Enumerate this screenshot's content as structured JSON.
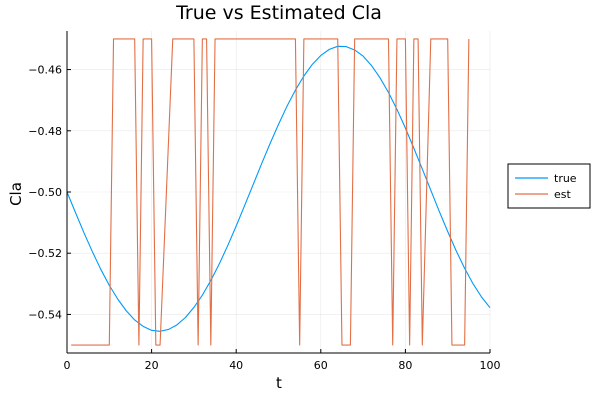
{
  "chart_data": {
    "type": "line",
    "title": "True vs Estimated Cla",
    "xlabel": "t",
    "ylabel": "Cla",
    "xlim": [
      0,
      100
    ],
    "ylim": [
      -0.5526,
      -0.4474
    ],
    "x_ticks": [
      0,
      20,
      40,
      60,
      80,
      100
    ],
    "y_ticks": [
      -0.54,
      -0.52,
      -0.5,
      -0.48,
      -0.46
    ],
    "x_tick_labels": [
      "0",
      "20",
      "40",
      "60",
      "80",
      "100"
    ],
    "y_tick_labels": [
      "−0.54",
      "−0.52",
      "−0.50",
      "−0.48",
      "−0.46"
    ],
    "grid": true,
    "legend_position": "right",
    "series": [
      {
        "name": "true",
        "color": "#009AFA",
        "formula_note_amplitude": 0.05,
        "x": [
          0,
          2,
          4,
          6,
          8,
          10,
          12,
          14,
          16,
          18,
          20,
          22,
          24,
          26,
          28,
          30,
          32,
          34,
          36,
          38,
          40,
          42,
          44,
          46,
          48,
          50,
          52,
          54,
          56,
          58,
          60,
          62,
          64,
          66,
          68,
          70,
          72,
          74,
          76,
          78,
          80,
          82,
          84,
          86,
          88,
          90,
          92,
          94,
          96,
          98,
          100
        ],
        "y": [
          -0.5,
          -0.5067,
          -0.5133,
          -0.5195,
          -0.5253,
          -0.5305,
          -0.535,
          -0.5388,
          -0.5418,
          -0.5439,
          -0.5452,
          -0.5455,
          -0.5449,
          -0.5434,
          -0.541,
          -0.5377,
          -0.5337,
          -0.5289,
          -0.5235,
          -0.5175,
          -0.5111,
          -0.5044,
          -0.4976,
          -0.4908,
          -0.4842,
          -0.4779,
          -0.472,
          -0.4667,
          -0.4621,
          -0.4583,
          -0.4554,
          -0.4534,
          -0.4524,
          -0.4525,
          -0.4536,
          -0.4556,
          -0.4587,
          -0.4627,
          -0.4675,
          -0.473,
          -0.4791,
          -0.4857,
          -0.4925,
          -0.4994,
          -0.5063,
          -0.5129,
          -0.5192,
          -0.5249,
          -0.53,
          -0.5343,
          -0.5378
        ]
      },
      {
        "name": "est",
        "color": "#E26F46",
        "x": [
          1,
          10,
          11,
          16,
          17,
          18,
          20,
          21,
          22,
          25,
          26,
          30,
          31,
          32,
          33,
          34,
          35,
          36,
          37,
          54,
          55,
          56,
          57,
          58,
          64,
          65,
          67,
          68,
          71,
          72,
          76,
          77,
          78,
          80,
          81,
          82,
          83,
          84,
          86,
          87,
          90,
          91,
          92,
          94,
          95
        ],
        "y": [
          -0.55,
          -0.55,
          -0.45,
          -0.45,
          -0.55,
          -0.45,
          -0.45,
          -0.55,
          -0.55,
          -0.45,
          -0.45,
          -0.45,
          -0.55,
          -0.45,
          -0.45,
          -0.55,
          -0.45,
          -0.45,
          -0.45,
          -0.45,
          -0.55,
          -0.45,
          -0.45,
          -0.45,
          -0.45,
          -0.55,
          -0.55,
          -0.45,
          -0.45,
          -0.45,
          -0.45,
          -0.55,
          -0.45,
          -0.45,
          -0.55,
          -0.45,
          -0.45,
          -0.55,
          -0.45,
          -0.45,
          -0.45,
          -0.55,
          -0.55,
          -0.55,
          -0.45
        ]
      }
    ]
  }
}
